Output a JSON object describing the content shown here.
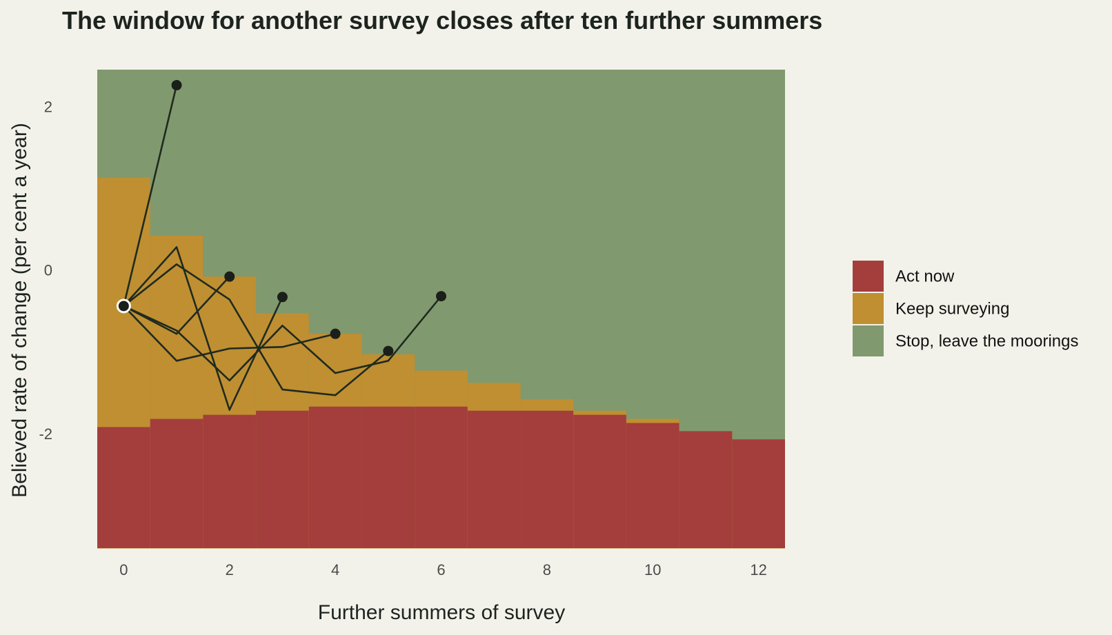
{
  "chart_data": {
    "type": "area",
    "title": "The window for another survey closes after ten further summers",
    "xlabel": "Further summers of survey",
    "ylabel": "Believed rate of change (per cent a year)",
    "xlim": [
      -0.5,
      12.5
    ],
    "ylim": [
      -3.4,
      2.45
    ],
    "x_ticks": [
      0,
      2,
      4,
      6,
      8,
      10,
      12
    ],
    "y_ticks": [
      -2,
      0,
      2
    ],
    "grid": false,
    "legend_position": "right",
    "x": [
      0,
      1,
      2,
      3,
      4,
      5,
      6,
      7,
      8,
      9,
      10,
      11,
      12
    ],
    "act_now_upper": [
      -1.92,
      -1.82,
      -1.77,
      -1.72,
      -1.67,
      -1.67,
      -1.67,
      -1.72,
      -1.72,
      -1.77,
      -1.87,
      -1.97,
      -2.07
    ],
    "keep_surveying_upper": [
      1.13,
      0.42,
      -0.08,
      -0.53,
      -0.78,
      -1.03,
      -1.23,
      -1.38,
      -1.58,
      -1.72,
      -1.82,
      -1.97,
      -2.07
    ],
    "regions": [
      {
        "name": "Act now",
        "color": "#a33e3c"
      },
      {
        "name": "Keep surveying",
        "color": "#bf8f31"
      },
      {
        "name": "Stop, leave the moorings",
        "color": "#81996e"
      }
    ],
    "start_point": {
      "x": 0,
      "y": -0.44
    },
    "paths": [
      {
        "points": [
          [
            0,
            -0.44
          ],
          [
            1,
            2.26
          ]
        ]
      },
      {
        "points": [
          [
            0,
            -0.44
          ],
          [
            1,
            0.28
          ],
          [
            2,
            -1.71
          ],
          [
            3,
            -0.33
          ]
        ]
      },
      {
        "points": [
          [
            0,
            -0.44
          ],
          [
            1,
            -0.78
          ],
          [
            2,
            -0.08
          ]
        ]
      },
      {
        "points": [
          [
            0,
            -0.44
          ],
          [
            1,
            0.07
          ],
          [
            2,
            -0.36
          ],
          [
            3,
            -1.46
          ],
          [
            4,
            -1.53
          ],
          [
            5,
            -0.99
          ]
        ]
      },
      {
        "points": [
          [
            0,
            -0.44
          ],
          [
            1,
            -0.74
          ],
          [
            2,
            -1.35
          ],
          [
            3,
            -0.68
          ],
          [
            4,
            -1.26
          ],
          [
            5,
            -1.11
          ],
          [
            6,
            -0.32
          ]
        ]
      },
      {
        "points": [
          [
            0,
            -0.44
          ],
          [
            1,
            -1.11
          ],
          [
            2,
            -0.96
          ],
          [
            3,
            -0.94
          ],
          [
            4,
            -0.78
          ]
        ]
      }
    ]
  }
}
